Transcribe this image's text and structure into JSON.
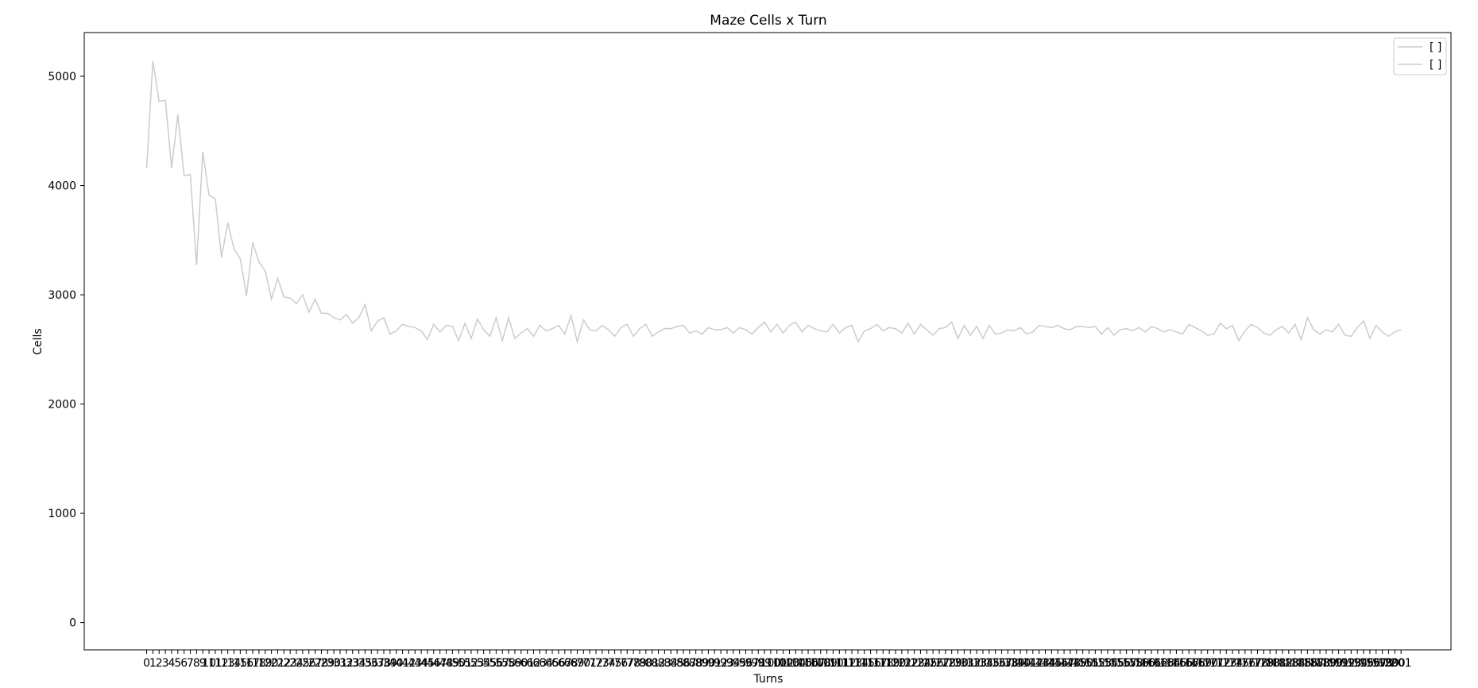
{
  "chart_data": {
    "type": "line",
    "title": "Maze Cells x Turn",
    "xlabel": "Turns",
    "ylabel": "Cells",
    "ylim": [
      -250,
      5400
    ],
    "xlim": [
      -10,
      209
    ],
    "y_ticks": [
      0,
      1000,
      2000,
      3000,
      4000,
      5000
    ],
    "legend": {
      "placement": "top-right",
      "entries": [
        "[ ]",
        "[ ]"
      ]
    },
    "line_color": "#cccccc",
    "grid": false,
    "series": [
      {
        "values": [
          4160,
          5140,
          4770,
          4780,
          4160,
          4650,
          4090,
          4100,
          3270,
          4310,
          3910,
          3880,
          3340,
          3660,
          3420,
          3330,
          2990,
          3480,
          3300,
          3220,
          2960,
          3150,
          2980,
          2970,
          2920,
          3000,
          2840,
          2960,
          2830,
          2830,
          2790,
          2770,
          2820,
          2740,
          2790,
          2910,
          2670,
          2760,
          2790,
          2640,
          2670,
          2730,
          2710,
          2700,
          2670,
          2590,
          2730,
          2660,
          2720,
          2710,
          2580,
          2740,
          2600,
          2780,
          2680,
          2620,
          2790,
          2580,
          2790,
          2600,
          2650,
          2690,
          2620,
          2720,
          2670,
          2690,
          2720,
          2640,
          2810,
          2570,
          2770,
          2680,
          2670,
          2720,
          2680,
          2620,
          2700,
          2730,
          2620,
          2690,
          2730,
          2620,
          2660,
          2690,
          2690,
          2710,
          2720,
          2650,
          2670,
          2640,
          2700,
          2680,
          2680,
          2700,
          2650,
          2700,
          2680,
          2640,
          2700,
          2750,
          2660,
          2730,
          2650,
          2720,
          2750,
          2660,
          2720,
          2690,
          2670,
          2660,
          2730,
          2650,
          2700,
          2720,
          2570,
          2670,
          2690,
          2730,
          2670,
          2700,
          2690,
          2650,
          2740,
          2640,
          2730,
          2680,
          2630,
          2690,
          2700,
          2750,
          2600,
          2720,
          2630,
          2710,
          2600,
          2720,
          2640,
          2650,
          2680,
          2670,
          2700,
          2640,
          2660,
          2720,
          2710,
          2700,
          2720,
          2690,
          2680,
          2710,
          2710,
          2700,
          2710,
          2640,
          2700,
          2630,
          2680,
          2690,
          2670,
          2700,
          2660,
          2710,
          2690,
          2660,
          2680,
          2660,
          2640,
          2730,
          2700,
          2670,
          2630,
          2640,
          2740,
          2690,
          2720,
          2580,
          2670,
          2730,
          2700,
          2650,
          2630,
          2680,
          2710,
          2650,
          2730,
          2590,
          2790,
          2680,
          2640,
          2680,
          2660,
          2730,
          2630,
          2620,
          2700,
          2760,
          2600,
          2720,
          2660,
          2620,
          2660,
          2680
        ]
      },
      {
        "values": []
      }
    ]
  }
}
